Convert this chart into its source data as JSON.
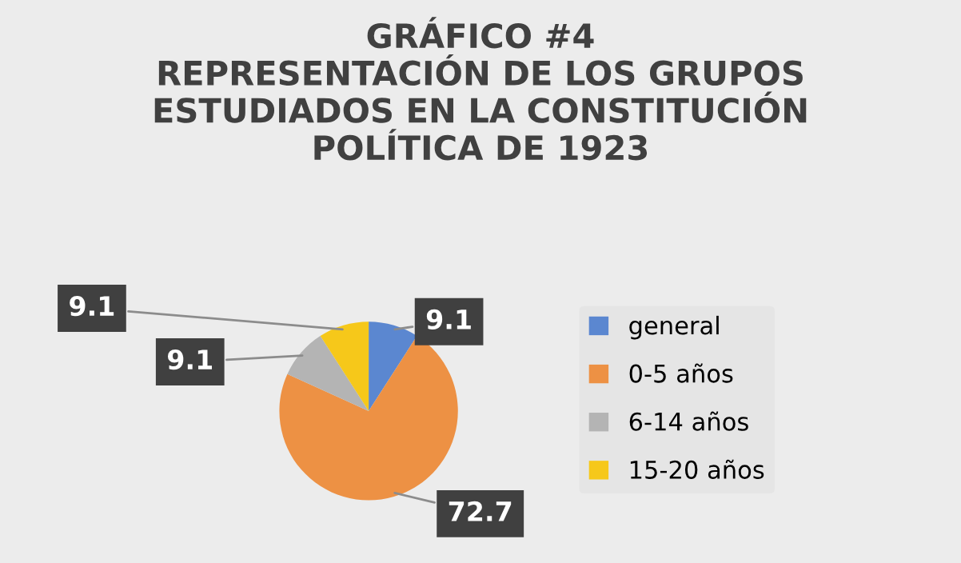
{
  "chart_data": {
    "type": "pie",
    "title": "GRÁFICO #4\nREPRESENTACIÓN DE LOS GRUPOS\nESTUDIADOS EN LA CONSTITUCIÓN\nPOLÍTICA DE 1923",
    "categories": [
      "general",
      "0-5 años",
      "6-14 años",
      "15-20 años"
    ],
    "values": [
      9.1,
      72.7,
      9.1,
      9.1
    ],
    "colors": [
      "#5b87d0",
      "#ed9144",
      "#b4b4b4",
      "#f6c81a"
    ],
    "data_labels": true,
    "legend": "right"
  }
}
